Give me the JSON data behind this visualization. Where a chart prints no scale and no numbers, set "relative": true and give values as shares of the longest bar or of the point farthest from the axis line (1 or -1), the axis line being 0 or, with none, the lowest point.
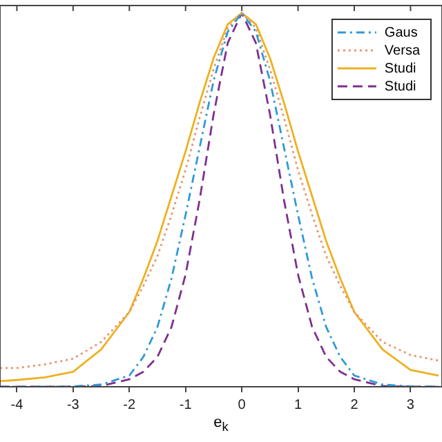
{
  "chart_data": {
    "type": "line",
    "relative": true,
    "xlabel": "e$_{k}$",
    "x": [
      -4.3,
      -4,
      -3.5,
      -3,
      -2.5,
      -2,
      -1.75,
      -1.5,
      -1.25,
      -1,
      -0.75,
      -0.5,
      -0.25,
      0,
      0.25,
      0.5,
      0.75,
      1,
      1.25,
      1.5,
      1.75,
      2,
      2.5,
      3,
      3.5
    ],
    "xlim": [
      -4.3,
      3.56
    ],
    "xticks": [
      -4,
      -3,
      -2,
      -1,
      0,
      1,
      2,
      3
    ],
    "series": [
      {
        "name": "Gaus",
        "color": "#2e9ad8",
        "line_style": "dashdot",
        "values": [
          0,
          0,
          0,
          0.001,
          0.006,
          0.03,
          0.08,
          0.16,
          0.29,
          0.46,
          0.64,
          0.82,
          0.95,
          1,
          0.95,
          0.82,
          0.64,
          0.46,
          0.29,
          0.16,
          0.08,
          0.03,
          0.006,
          0.001,
          0
        ]
      },
      {
        "name": "Versa",
        "color": "#e8956e",
        "line_style": "dotted",
        "values": [
          0.05,
          0.05,
          0.06,
          0.075,
          0.12,
          0.2,
          0.27,
          0.35,
          0.46,
          0.58,
          0.72,
          0.85,
          0.96,
          1,
          0.96,
          0.85,
          0.72,
          0.58,
          0.46,
          0.35,
          0.27,
          0.2,
          0.12,
          0.085,
          0.07
        ]
      },
      {
        "name": "Studi",
        "color": "#edb120",
        "line_style": "solid",
        "values": [
          0.015,
          0.018,
          0.025,
          0.04,
          0.1,
          0.2,
          0.29,
          0.39,
          0.51,
          0.63,
          0.76,
          0.88,
          0.97,
          1,
          0.97,
          0.88,
          0.76,
          0.63,
          0.51,
          0.39,
          0.29,
          0.2,
          0.1,
          0.045,
          0.03
        ]
      },
      {
        "name": "Studi",
        "color": "#7e2f8e",
        "line_style": "dashed",
        "values": [
          0,
          0,
          0,
          0,
          0.002,
          0.02,
          0.04,
          0.08,
          0.16,
          0.3,
          0.5,
          0.73,
          0.92,
          1,
          0.92,
          0.73,
          0.5,
          0.3,
          0.16,
          0.08,
          0.04,
          0.02,
          0.002,
          0,
          0
        ]
      }
    ],
    "legend": "top right",
    "grid": false,
    "marker": "none"
  }
}
